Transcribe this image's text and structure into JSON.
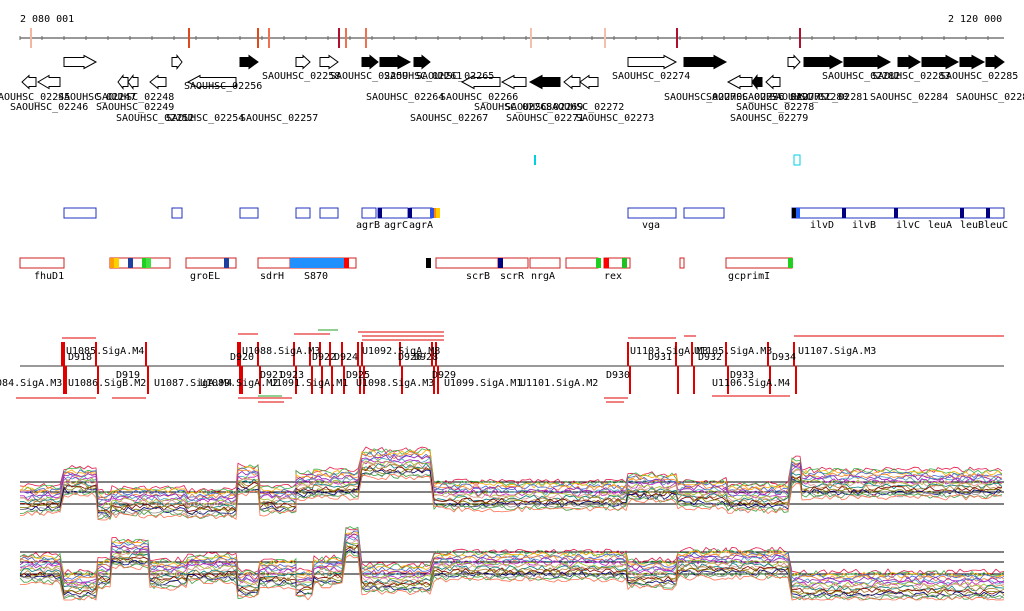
{
  "genome_browser": {
    "ruler": {
      "start_label": "2 080 001",
      "end_label": "2 120 000"
    },
    "gene_track": {
      "labels_row1": [
        "SAOUHSC_02258",
        "SAOUHSC_02259",
        "SAOUHSC_02261",
        "SAOUHSC_02265",
        "SAOUHSC_02274",
        "SAOUHSC_02282",
        "SAOUHSC_02283",
        "SAOUHSC_02285"
      ],
      "labels_row2": [
        "SAOUHSC_02245",
        "SAOUHSC_02247",
        "SAOUHSC_02248",
        "SAOUHSC_02256",
        "SAOUHSC_02264",
        "SAOUHSC_02266",
        "SAOUHSC_02270",
        "SAOUHSC_02276",
        "SAOUHSC_02277",
        "SAOUHSC_02280",
        "SAOUHSC_02281",
        "SAOUHSC_02284",
        "SAOUHSC_02286"
      ],
      "labels_row3": [
        "SAOUHSC_02246",
        "SAOUHSC_02249",
        "SAOUHSC_02268",
        "SAOUHSC_02269",
        "SAOUHSC_02272",
        "SAOUHSC_02278"
      ],
      "labels_row4": [
        "SAOUHSC_02252",
        "SAOUHSC_02254",
        "SAOUHSC_02257",
        "SAOUHSC_02267",
        "SAOUHSC_02271",
        "SAOUHSC_02273",
        "SAOUHSC_02279"
      ]
    },
    "operon_track_1": {
      "labels": [
        "agrB",
        "agrC",
        "agrA",
        "vga",
        "ilvD",
        "ilvB",
        "ilvC",
        "leuA",
        "leuB",
        "leuC"
      ]
    },
    "operon_track_2": {
      "labels": [
        "fhuD1",
        "groEL",
        "sdrH",
        "S870",
        "scrB",
        "scrR",
        "nrgA",
        "rex",
        "gcprimI"
      ]
    },
    "promoter_track": {
      "labels_top": [
        "U1085.SigA.M4",
        "D918",
        "D920",
        "U1088.SigA.M3",
        "D922",
        "D924",
        "U1092.SigA.M8",
        "D926",
        "D928",
        "U1103.SigA.M3",
        "D931",
        "U1105.SigA.M3",
        "D932",
        "D934",
        "U1107.SigA.M3"
      ],
      "labels_bottom": [
        "U1084.SigA.M3",
        "U1086.SigB.M2",
        "D919",
        "U1087.SigA.M4",
        "U1089.SigA.M2",
        "D921",
        "D923",
        "U1091.SigA.M1",
        "D925",
        "U1098.SigA.M3",
        "D929",
        "U1099.SigA.M1",
        "U1101.SigA.M2",
        "D930",
        "D933",
        "U1106.SigA.M4"
      ]
    },
    "expression_tracks": {
      "count": 2
    }
  }
}
